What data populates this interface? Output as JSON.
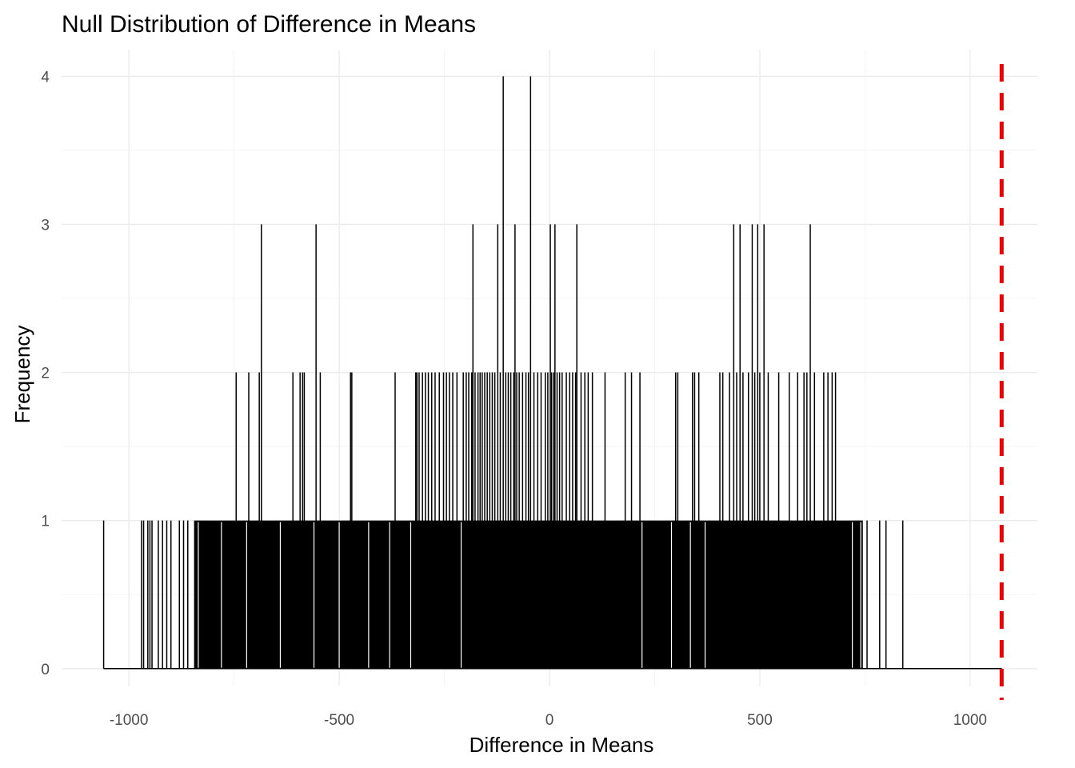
{
  "chart_data": {
    "type": "histogram",
    "title": "Null Distribution of Difference in Means",
    "xlabel": "Difference in Means",
    "ylabel": "Frequency",
    "xlim": [
      -1160,
      1160
    ],
    "ylim": [
      -0.12,
      4.18
    ],
    "x_ticks": [
      -1000,
      -500,
      0,
      500,
      1000
    ],
    "x_tick_labels": [
      "-1000",
      "-500",
      "0",
      "500",
      "1000"
    ],
    "y_ticks": [
      0,
      1,
      2,
      3,
      4
    ],
    "y_tick_labels": [
      "0",
      "1",
      "2",
      "3",
      "4"
    ],
    "grid": true,
    "bar_color": "#000000",
    "reference_line": {
      "x": 1075,
      "color": "#ee0000",
      "style": "dashed"
    },
    "bins": {
      "count_4": [
        -110,
        -45
      ],
      "count_3": [
        -685,
        -555,
        -182,
        -123,
        -82,
        2,
        13,
        65,
        438,
        453,
        482,
        495,
        510,
        620
      ],
      "count_2": [
        -745,
        -715,
        -690,
        -685,
        -610,
        -593,
        -587,
        -583,
        -545,
        -473,
        -470,
        -367,
        -318,
        -315,
        -310,
        -302,
        -295,
        -288,
        -280,
        -272,
        -262,
        -252,
        -245,
        -238,
        -230,
        -220,
        -205,
        -198,
        -192,
        -185,
        -177,
        -170,
        -165,
        -160,
        -154,
        -148,
        -142,
        -136,
        -130,
        -117,
        -104,
        -98,
        -92,
        -85,
        -78,
        -72,
        -64,
        -56,
        -50,
        -37,
        -28,
        -20,
        -10,
        -4,
        5,
        10,
        18,
        24,
        30,
        40,
        48,
        55,
        62,
        75,
        84,
        92,
        102,
        132,
        180,
        195,
        215,
        300,
        305,
        340,
        345,
        355,
        405,
        412,
        428,
        445,
        460,
        473,
        488,
        500,
        520,
        545,
        570,
        590,
        605,
        612,
        630,
        652,
        662,
        672,
        680
      ],
      "count_1": [
        -1060,
        -970,
        -965,
        -955,
        -950,
        -945,
        -930,
        -920,
        -910,
        -900,
        -880,
        -870,
        -860
      ]
    },
    "dense_region": [
      -845,
      745
    ],
    "sparse_tail": [
      755,
      785,
      800,
      840
    ]
  }
}
